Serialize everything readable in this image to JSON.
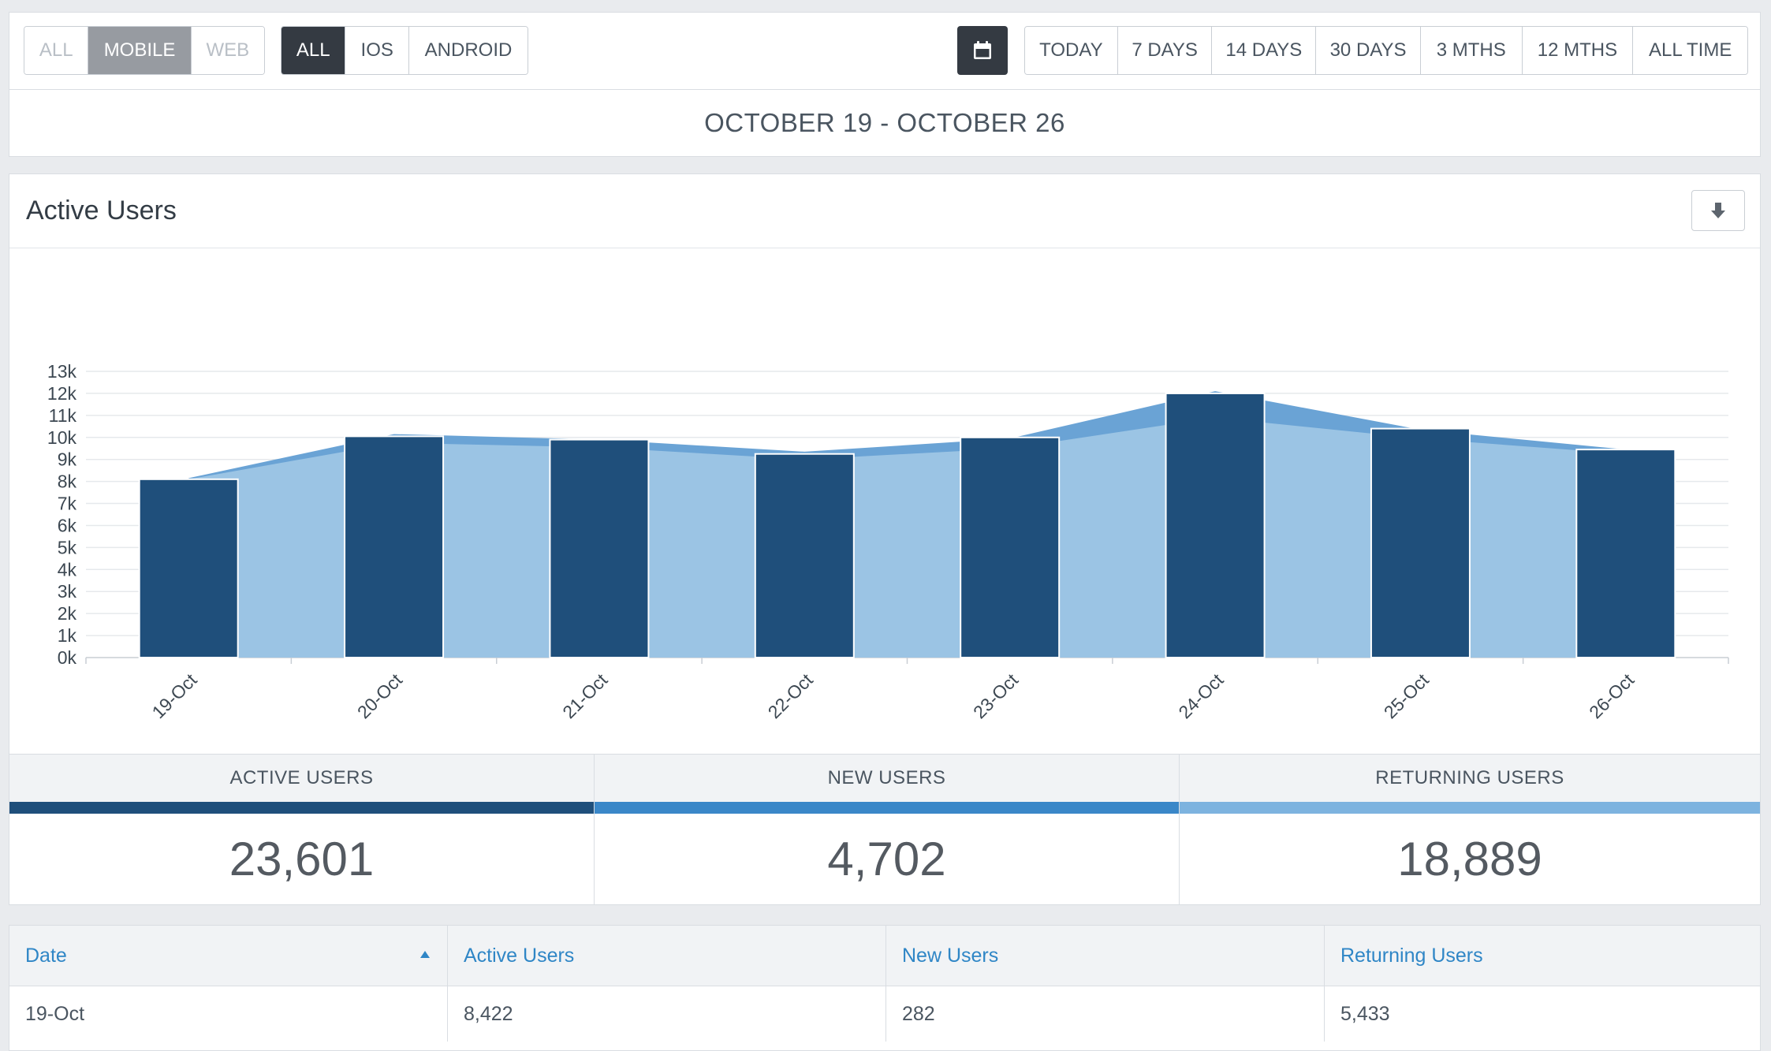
{
  "platform_filter": {
    "options": [
      {
        "label": "ALL",
        "state": "disabled"
      },
      {
        "label": "MOBILE",
        "state": "selected"
      },
      {
        "label": "WEB",
        "state": "disabled"
      }
    ]
  },
  "os_filter": {
    "options": [
      {
        "label": "ALL",
        "state": "selected"
      },
      {
        "label": "IOS",
        "state": "normal"
      },
      {
        "label": "ANDROID",
        "state": "normal"
      }
    ]
  },
  "calendar_icon": "calendar-icon",
  "range_filter": {
    "options": [
      "TODAY",
      "7 DAYS",
      "14 DAYS",
      "30 DAYS",
      "3 MTHS",
      "12 MTHS",
      "ALL TIME"
    ]
  },
  "date_range": "OCTOBER 19 - OCTOBER 26",
  "chart_title": "Active Users",
  "download_icon": "download-icon",
  "chart_data": {
    "type": "bar",
    "title": "",
    "xlabel": "",
    "ylabel": "",
    "categories": [
      "19-Oct",
      "20-Oct",
      "21-Oct",
      "22-Oct",
      "23-Oct",
      "24-Oct",
      "25-Oct",
      "26-Oct"
    ],
    "y_ticks": [
      "0k",
      "1k",
      "2k",
      "3k",
      "4k",
      "5k",
      "6k",
      "7k",
      "8k",
      "9k",
      "10k",
      "11k",
      "12k",
      "13k"
    ],
    "ylim": [
      0,
      13000
    ],
    "grid": true,
    "series": [
      {
        "type": "bar",
        "color": "#1f4f7b",
        "values": [
          8100,
          10050,
          9900,
          9250,
          10000,
          12000,
          10400,
          9450
        ]
      },
      {
        "type": "area",
        "color": "#6aa3d5",
        "values": [
          8150,
          10150,
          9900,
          9350,
          9950,
          12100,
          10350,
          9450
        ]
      },
      {
        "type": "area",
        "color": "#9bc4e4",
        "values": [
          8100,
          9750,
          9550,
          9000,
          9500,
          10900,
          9950,
          9250
        ]
      }
    ]
  },
  "stats": [
    {
      "label": "ACTIVE USERS",
      "value": "23,601",
      "color": "#1f4f7b"
    },
    {
      "label": "NEW USERS",
      "value": "4,702",
      "color": "#3a87c8"
    },
    {
      "label": "RETURNING USERS",
      "value": "18,889",
      "color": "#7db3df"
    }
  ],
  "table": {
    "headers": [
      "Date",
      "Active Users",
      "New Users",
      "Returning Users"
    ],
    "rows": [
      [
        "19-Oct",
        "8,422",
        "282",
        "5,433"
      ]
    ]
  }
}
